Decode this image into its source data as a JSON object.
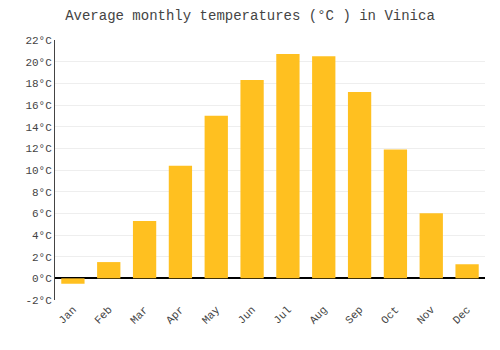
{
  "chart_data": {
    "type": "bar",
    "title": "Average monthly temperatures (°C ) in Vinica",
    "categories": [
      "Jan",
      "Feb",
      "Mar",
      "Apr",
      "May",
      "Jun",
      "Jul",
      "Aug",
      "Sep",
      "Oct",
      "Nov",
      "Dec"
    ],
    "values": [
      -0.5,
      1.5,
      5.3,
      10.4,
      15.0,
      18.3,
      20.7,
      20.5,
      17.2,
      11.9,
      6.0,
      1.3
    ],
    "color": "#FFC020",
    "ylim": [
      -2,
      22
    ],
    "yticks": [
      {
        "value": -2,
        "label": "-2°C"
      },
      {
        "value": 0,
        "label": "0°C"
      },
      {
        "value": 2,
        "label": "2°C"
      },
      {
        "value": 4,
        "label": "4°C"
      },
      {
        "value": 6,
        "label": "6°C"
      },
      {
        "value": 8,
        "label": "8°C"
      },
      {
        "value": 10,
        "label": "10°C"
      },
      {
        "value": 12,
        "label": "12°C"
      },
      {
        "value": 14,
        "label": "14°C"
      },
      {
        "value": 16,
        "label": "16°C"
      },
      {
        "value": 18,
        "label": "18°C"
      },
      {
        "value": 20,
        "label": "20°C"
      },
      {
        "value": 22,
        "label": "22°C"
      }
    ],
    "grid": true
  }
}
